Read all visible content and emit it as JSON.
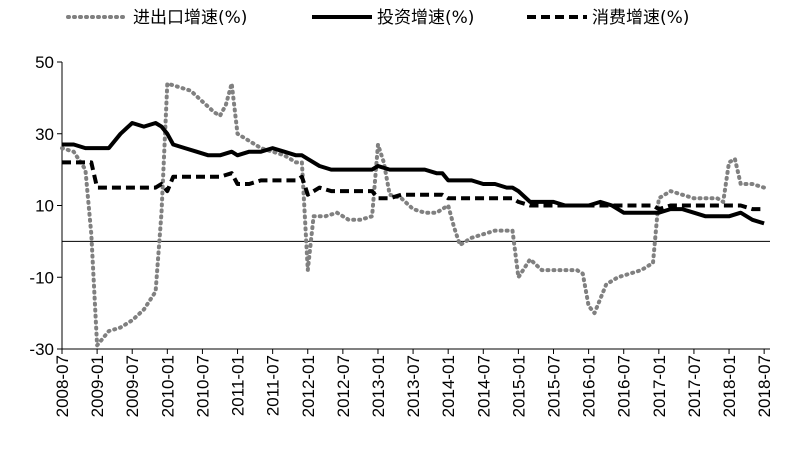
{
  "chart_data": {
    "type": "line",
    "title": "",
    "xlabel": "",
    "ylabel": "",
    "ylim": [
      -30,
      50
    ],
    "yticks": [
      -30,
      -10,
      10,
      30,
      50
    ],
    "xlim": [
      "2008-07",
      "2018-08"
    ],
    "x_tick_labels": [
      "2008-07",
      "2009-01",
      "2009-07",
      "2010-01",
      "2010-07",
      "2011-01",
      "2011-07",
      "2012-01",
      "2012-07",
      "2013-01",
      "2013-07",
      "2014-01",
      "2014-07",
      "2015-01",
      "2015-07",
      "2016-01",
      "2016-07",
      "2017-01",
      "2017-07",
      "2018-01",
      "2018-07"
    ],
    "grid": false,
    "zero_line": true,
    "legend_position": "top",
    "series": [
      {
        "name": "进出口增速(%)",
        "style": "dotted",
        "color": "#808080",
        "points": [
          [
            "2008-07",
            26
          ],
          [
            "2008-09",
            25
          ],
          [
            "2008-11",
            20
          ],
          [
            "2008-12",
            2
          ],
          [
            "2009-01",
            -29
          ],
          [
            "2009-02",
            -27
          ],
          [
            "2009-03",
            -25
          ],
          [
            "2009-05",
            -24
          ],
          [
            "2009-07",
            -22
          ],
          [
            "2009-09",
            -19
          ],
          [
            "2009-11",
            -14
          ],
          [
            "2009-12",
            8
          ],
          [
            "2010-01",
            44
          ],
          [
            "2010-03",
            43
          ],
          [
            "2010-05",
            42
          ],
          [
            "2010-07",
            39
          ],
          [
            "2010-09",
            36
          ],
          [
            "2010-10",
            35
          ],
          [
            "2010-11",
            38
          ],
          [
            "2010-12",
            44
          ],
          [
            "2011-01",
            30
          ],
          [
            "2011-03",
            28
          ],
          [
            "2011-05",
            26
          ],
          [
            "2011-07",
            25
          ],
          [
            "2011-09",
            24
          ],
          [
            "2011-11",
            22
          ],
          [
            "2011-12",
            22
          ],
          [
            "2012-01",
            -8
          ],
          [
            "2012-02",
            7
          ],
          [
            "2012-04",
            7
          ],
          [
            "2012-06",
            8
          ],
          [
            "2012-08",
            6
          ],
          [
            "2012-10",
            6
          ],
          [
            "2012-12",
            7
          ],
          [
            "2013-01",
            27
          ],
          [
            "2013-02",
            22
          ],
          [
            "2013-03",
            13
          ],
          [
            "2013-05",
            12
          ],
          [
            "2013-07",
            9
          ],
          [
            "2013-09",
            8
          ],
          [
            "2013-11",
            8
          ],
          [
            "2013-12",
            9
          ],
          [
            "2014-01",
            10
          ],
          [
            "2014-02",
            4
          ],
          [
            "2014-03",
            -1
          ],
          [
            "2014-05",
            1
          ],
          [
            "2014-07",
            2
          ],
          [
            "2014-09",
            3
          ],
          [
            "2014-11",
            3
          ],
          [
            "2014-12",
            3
          ],
          [
            "2015-01",
            -10
          ],
          [
            "2015-03",
            -5
          ],
          [
            "2015-05",
            -8
          ],
          [
            "2015-07",
            -8
          ],
          [
            "2015-09",
            -8
          ],
          [
            "2015-11",
            -8
          ],
          [
            "2015-12",
            -9
          ],
          [
            "2016-01",
            -18
          ],
          [
            "2016-02",
            -20
          ],
          [
            "2016-04",
            -12
          ],
          [
            "2016-06",
            -10
          ],
          [
            "2016-08",
            -9
          ],
          [
            "2016-10",
            -8
          ],
          [
            "2016-12",
            -6
          ],
          [
            "2017-01",
            12
          ],
          [
            "2017-03",
            14
          ],
          [
            "2017-05",
            13
          ],
          [
            "2017-07",
            12
          ],
          [
            "2017-09",
            12
          ],
          [
            "2017-11",
            12
          ],
          [
            "2017-12",
            11
          ],
          [
            "2018-01",
            22
          ],
          [
            "2018-02",
            23
          ],
          [
            "2018-03",
            16
          ],
          [
            "2018-05",
            16
          ],
          [
            "2018-07",
            15
          ]
        ]
      },
      {
        "name": "投资增速(%)",
        "style": "solid-thick",
        "color": "#000000",
        "points": [
          [
            "2008-07",
            27
          ],
          [
            "2008-09",
            27
          ],
          [
            "2008-11",
            26
          ],
          [
            "2008-12",
            26
          ],
          [
            "2009-01",
            26
          ],
          [
            "2009-03",
            26
          ],
          [
            "2009-05",
            30
          ],
          [
            "2009-07",
            33
          ],
          [
            "2009-09",
            32
          ],
          [
            "2009-11",
            33
          ],
          [
            "2009-12",
            32
          ],
          [
            "2010-01",
            30
          ],
          [
            "2010-02",
            27
          ],
          [
            "2010-04",
            26
          ],
          [
            "2010-06",
            25
          ],
          [
            "2010-08",
            24
          ],
          [
            "2010-10",
            24
          ],
          [
            "2010-12",
            25
          ],
          [
            "2011-01",
            24
          ],
          [
            "2011-03",
            25
          ],
          [
            "2011-05",
            25
          ],
          [
            "2011-07",
            26
          ],
          [
            "2011-09",
            25
          ],
          [
            "2011-11",
            24
          ],
          [
            "2011-12",
            24
          ],
          [
            "2012-01",
            23
          ],
          [
            "2012-03",
            21
          ],
          [
            "2012-05",
            20
          ],
          [
            "2012-07",
            20
          ],
          [
            "2012-09",
            20
          ],
          [
            "2012-11",
            20
          ],
          [
            "2012-12",
            20
          ],
          [
            "2013-01",
            21
          ],
          [
            "2013-03",
            20
          ],
          [
            "2013-05",
            20
          ],
          [
            "2013-07",
            20
          ],
          [
            "2013-09",
            20
          ],
          [
            "2013-11",
            19
          ],
          [
            "2013-12",
            19
          ],
          [
            "2014-01",
            17
          ],
          [
            "2014-03",
            17
          ],
          [
            "2014-05",
            17
          ],
          [
            "2014-07",
            16
          ],
          [
            "2014-09",
            16
          ],
          [
            "2014-11",
            15
          ],
          [
            "2014-12",
            15
          ],
          [
            "2015-01",
            14
          ],
          [
            "2015-03",
            11
          ],
          [
            "2015-05",
            11
          ],
          [
            "2015-07",
            11
          ],
          [
            "2015-09",
            10
          ],
          [
            "2015-11",
            10
          ],
          [
            "2015-12",
            10
          ],
          [
            "2016-01",
            10
          ],
          [
            "2016-03",
            11
          ],
          [
            "2016-05",
            10
          ],
          [
            "2016-07",
            8
          ],
          [
            "2016-09",
            8
          ],
          [
            "2016-11",
            8
          ],
          [
            "2016-12",
            8
          ],
          [
            "2017-01",
            8
          ],
          [
            "2017-03",
            9
          ],
          [
            "2017-05",
            9
          ],
          [
            "2017-07",
            8
          ],
          [
            "2017-09",
            7
          ],
          [
            "2017-11",
            7
          ],
          [
            "2017-12",
            7
          ],
          [
            "2018-01",
            7
          ],
          [
            "2018-03",
            8
          ],
          [
            "2018-05",
            6
          ],
          [
            "2018-07",
            5
          ]
        ]
      },
      {
        "name": "消费增速(%)",
        "style": "dashed-thick",
        "color": "#000000",
        "points": [
          [
            "2008-07",
            22
          ],
          [
            "2008-09",
            22
          ],
          [
            "2008-11",
            22
          ],
          [
            "2008-12",
            22
          ],
          [
            "2009-01",
            15
          ],
          [
            "2009-03",
            15
          ],
          [
            "2009-05",
            15
          ],
          [
            "2009-07",
            15
          ],
          [
            "2009-09",
            15
          ],
          [
            "2009-11",
            15
          ],
          [
            "2009-12",
            16
          ],
          [
            "2010-01",
            14
          ],
          [
            "2010-02",
            18
          ],
          [
            "2010-04",
            18
          ],
          [
            "2010-06",
            18
          ],
          [
            "2010-08",
            18
          ],
          [
            "2010-10",
            18
          ],
          [
            "2010-12",
            19
          ],
          [
            "2011-01",
            16
          ],
          [
            "2011-03",
            16
          ],
          [
            "2011-05",
            17
          ],
          [
            "2011-07",
            17
          ],
          [
            "2011-09",
            17
          ],
          [
            "2011-11",
            17
          ],
          [
            "2011-12",
            18
          ],
          [
            "2012-01",
            13
          ],
          [
            "2012-03",
            15
          ],
          [
            "2012-05",
            14
          ],
          [
            "2012-07",
            14
          ],
          [
            "2012-09",
            14
          ],
          [
            "2012-11",
            14
          ],
          [
            "2012-12",
            14
          ],
          [
            "2013-01",
            12
          ],
          [
            "2013-03",
            12
          ],
          [
            "2013-05",
            13
          ],
          [
            "2013-07",
            13
          ],
          [
            "2013-09",
            13
          ],
          [
            "2013-11",
            13
          ],
          [
            "2013-12",
            13
          ],
          [
            "2014-01",
            12
          ],
          [
            "2014-03",
            12
          ],
          [
            "2014-05",
            12
          ],
          [
            "2014-07",
            12
          ],
          [
            "2014-09",
            12
          ],
          [
            "2014-11",
            12
          ],
          [
            "2014-12",
            12
          ],
          [
            "2015-01",
            11
          ],
          [
            "2015-03",
            10
          ],
          [
            "2015-05",
            10
          ],
          [
            "2015-07",
            10
          ],
          [
            "2015-09",
            10
          ],
          [
            "2015-11",
            10
          ],
          [
            "2015-12",
            10
          ],
          [
            "2016-01",
            10
          ],
          [
            "2016-03",
            10
          ],
          [
            "2016-05",
            10
          ],
          [
            "2016-07",
            10
          ],
          [
            "2016-09",
            10
          ],
          [
            "2016-11",
            10
          ],
          [
            "2016-12",
            10
          ],
          [
            "2017-01",
            9
          ],
          [
            "2017-03",
            10
          ],
          [
            "2017-05",
            10
          ],
          [
            "2017-07",
            10
          ],
          [
            "2017-09",
            10
          ],
          [
            "2017-11",
            10
          ],
          [
            "2017-12",
            10
          ],
          [
            "2018-01",
            10
          ],
          [
            "2018-03",
            10
          ],
          [
            "2018-05",
            9
          ],
          [
            "2018-07",
            9
          ]
        ]
      }
    ]
  }
}
